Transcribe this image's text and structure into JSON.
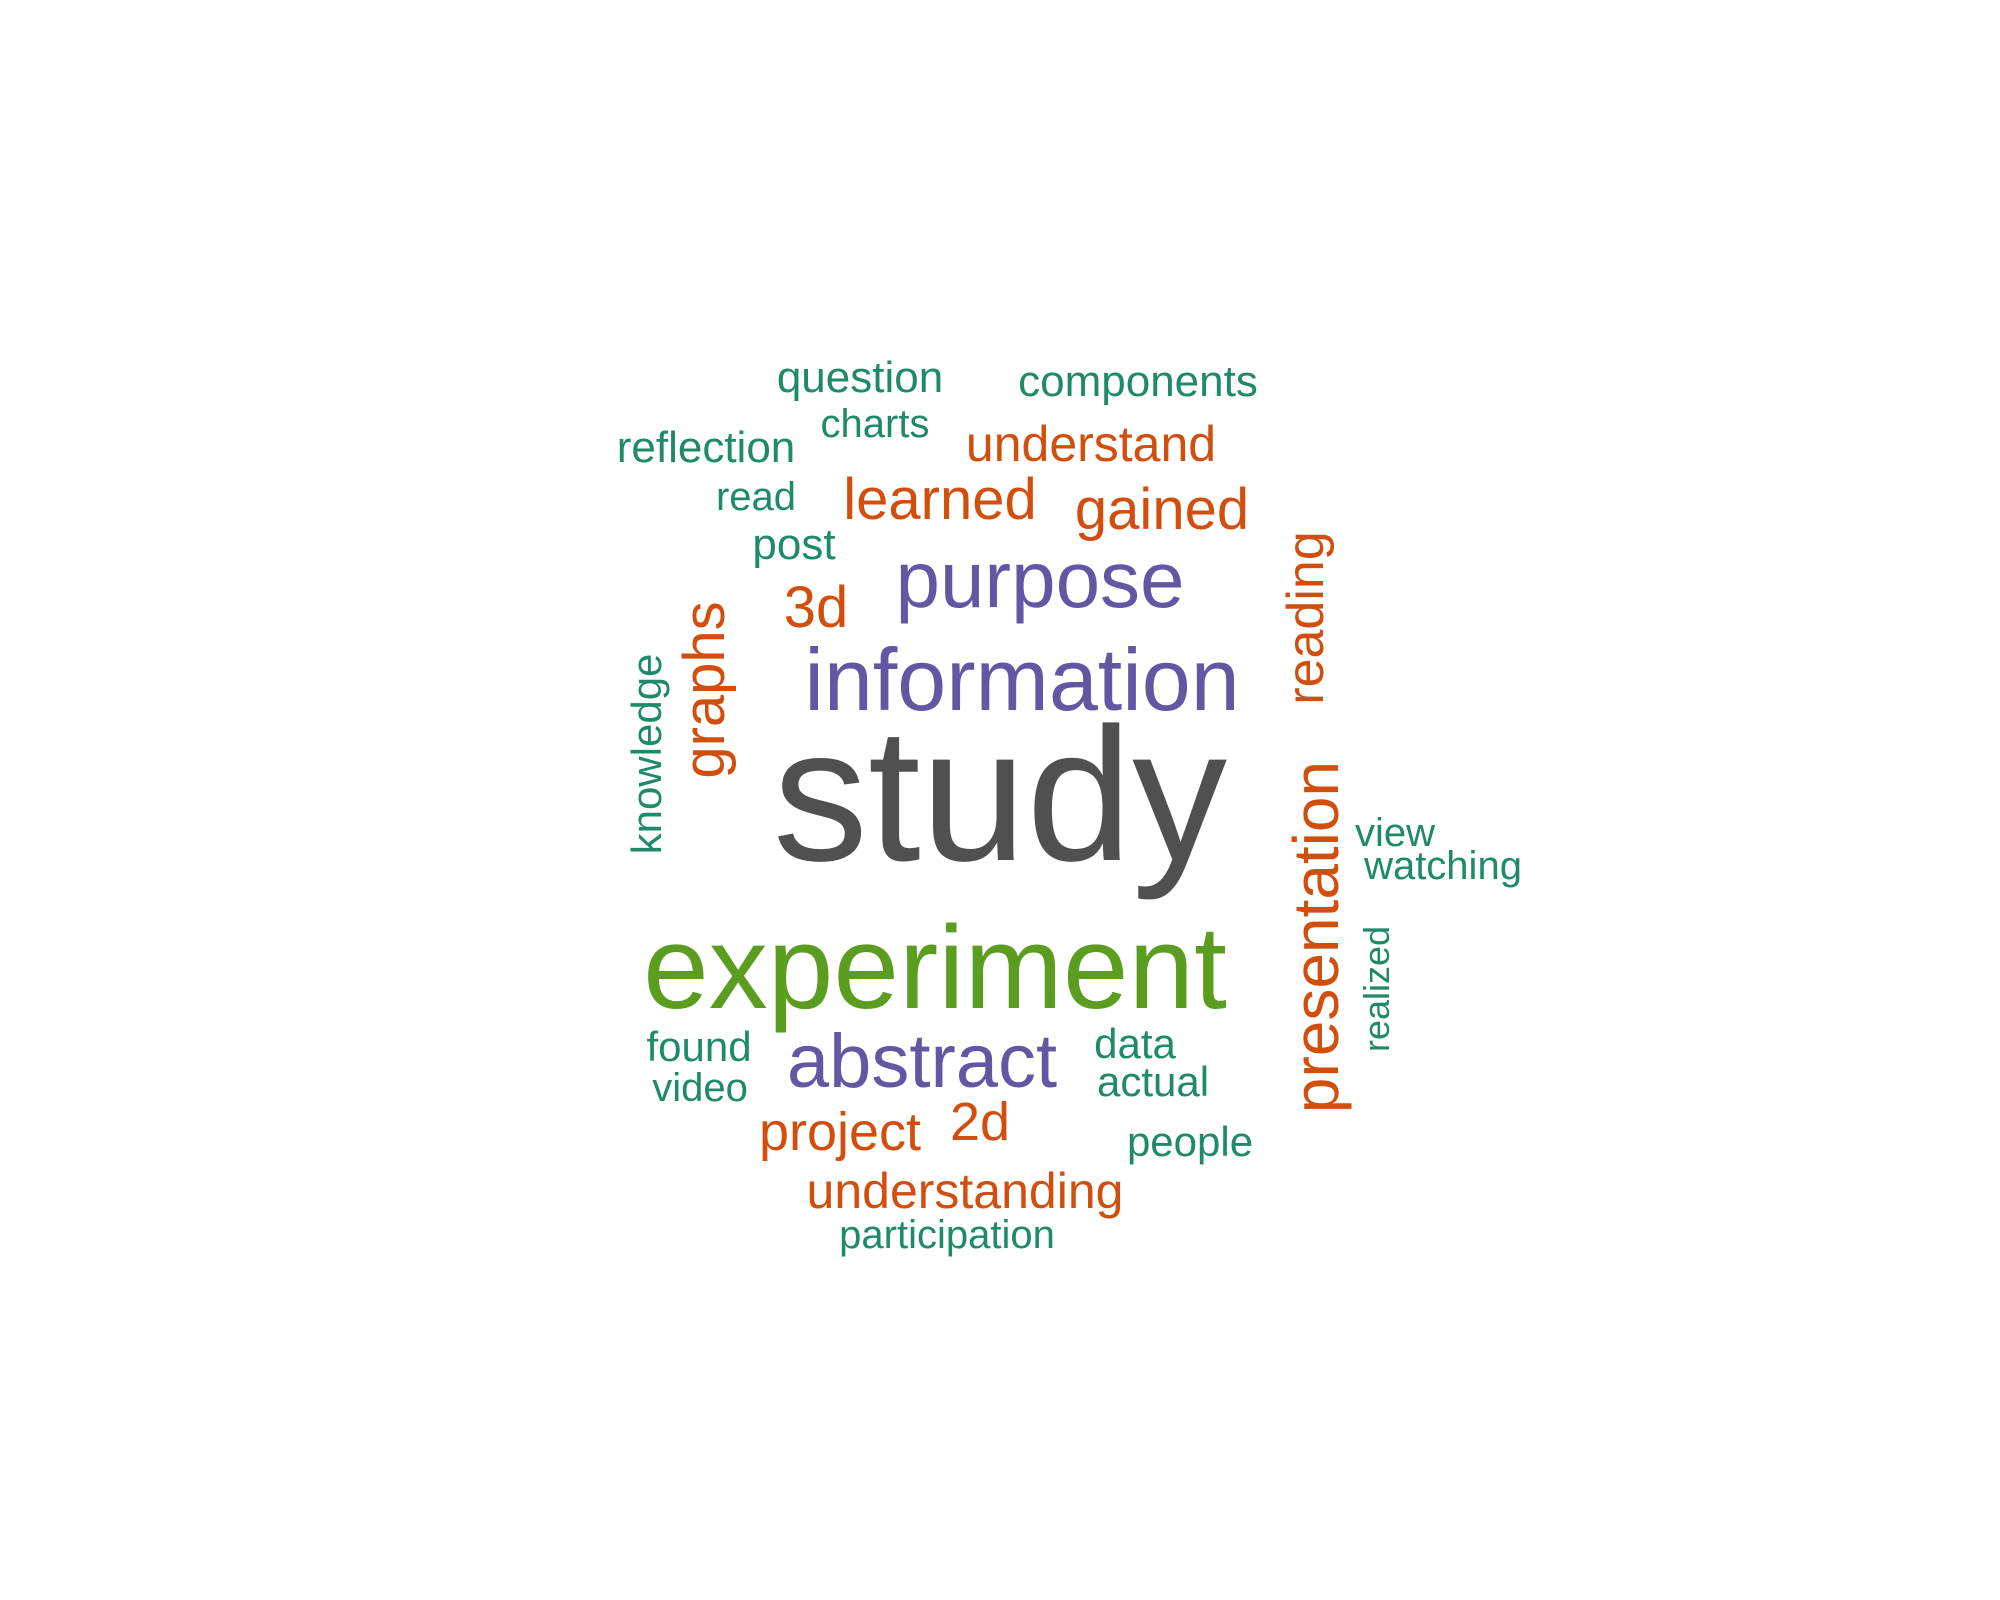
{
  "colors": {
    "gray": "#505050",
    "green": "#5b9e1f",
    "purple": "#6357a3",
    "orange": "#d24e0d",
    "teal": "#1e8a69"
  },
  "words": [
    {
      "text": "study",
      "color": "gray"
    },
    {
      "text": "experiment",
      "color": "green"
    },
    {
      "text": "information",
      "color": "purple"
    },
    {
      "text": "purpose",
      "color": "purple"
    },
    {
      "text": "abstract",
      "color": "purple"
    },
    {
      "text": "presentation",
      "color": "orange"
    },
    {
      "text": "graphs",
      "color": "orange"
    },
    {
      "text": "reading",
      "color": "orange"
    },
    {
      "text": "learned",
      "color": "orange"
    },
    {
      "text": "gained",
      "color": "orange"
    },
    {
      "text": "understand",
      "color": "orange"
    },
    {
      "text": "3d",
      "color": "orange"
    },
    {
      "text": "2d",
      "color": "orange"
    },
    {
      "text": "project",
      "color": "orange"
    },
    {
      "text": "understanding",
      "color": "orange"
    },
    {
      "text": "question",
      "color": "teal"
    },
    {
      "text": "components",
      "color": "teal"
    },
    {
      "text": "charts",
      "color": "teal"
    },
    {
      "text": "reflection",
      "color": "teal"
    },
    {
      "text": "read",
      "color": "teal"
    },
    {
      "text": "post",
      "color": "teal"
    },
    {
      "text": "knowledge",
      "color": "teal"
    },
    {
      "text": "view",
      "color": "teal"
    },
    {
      "text": "watching",
      "color": "teal"
    },
    {
      "text": "realized",
      "color": "teal"
    },
    {
      "text": "found",
      "color": "teal"
    },
    {
      "text": "video",
      "color": "teal"
    },
    {
      "text": "data",
      "color": "teal"
    },
    {
      "text": "actual",
      "color": "teal"
    },
    {
      "text": "people",
      "color": "teal"
    },
    {
      "text": "participation",
      "color": "teal"
    }
  ]
}
